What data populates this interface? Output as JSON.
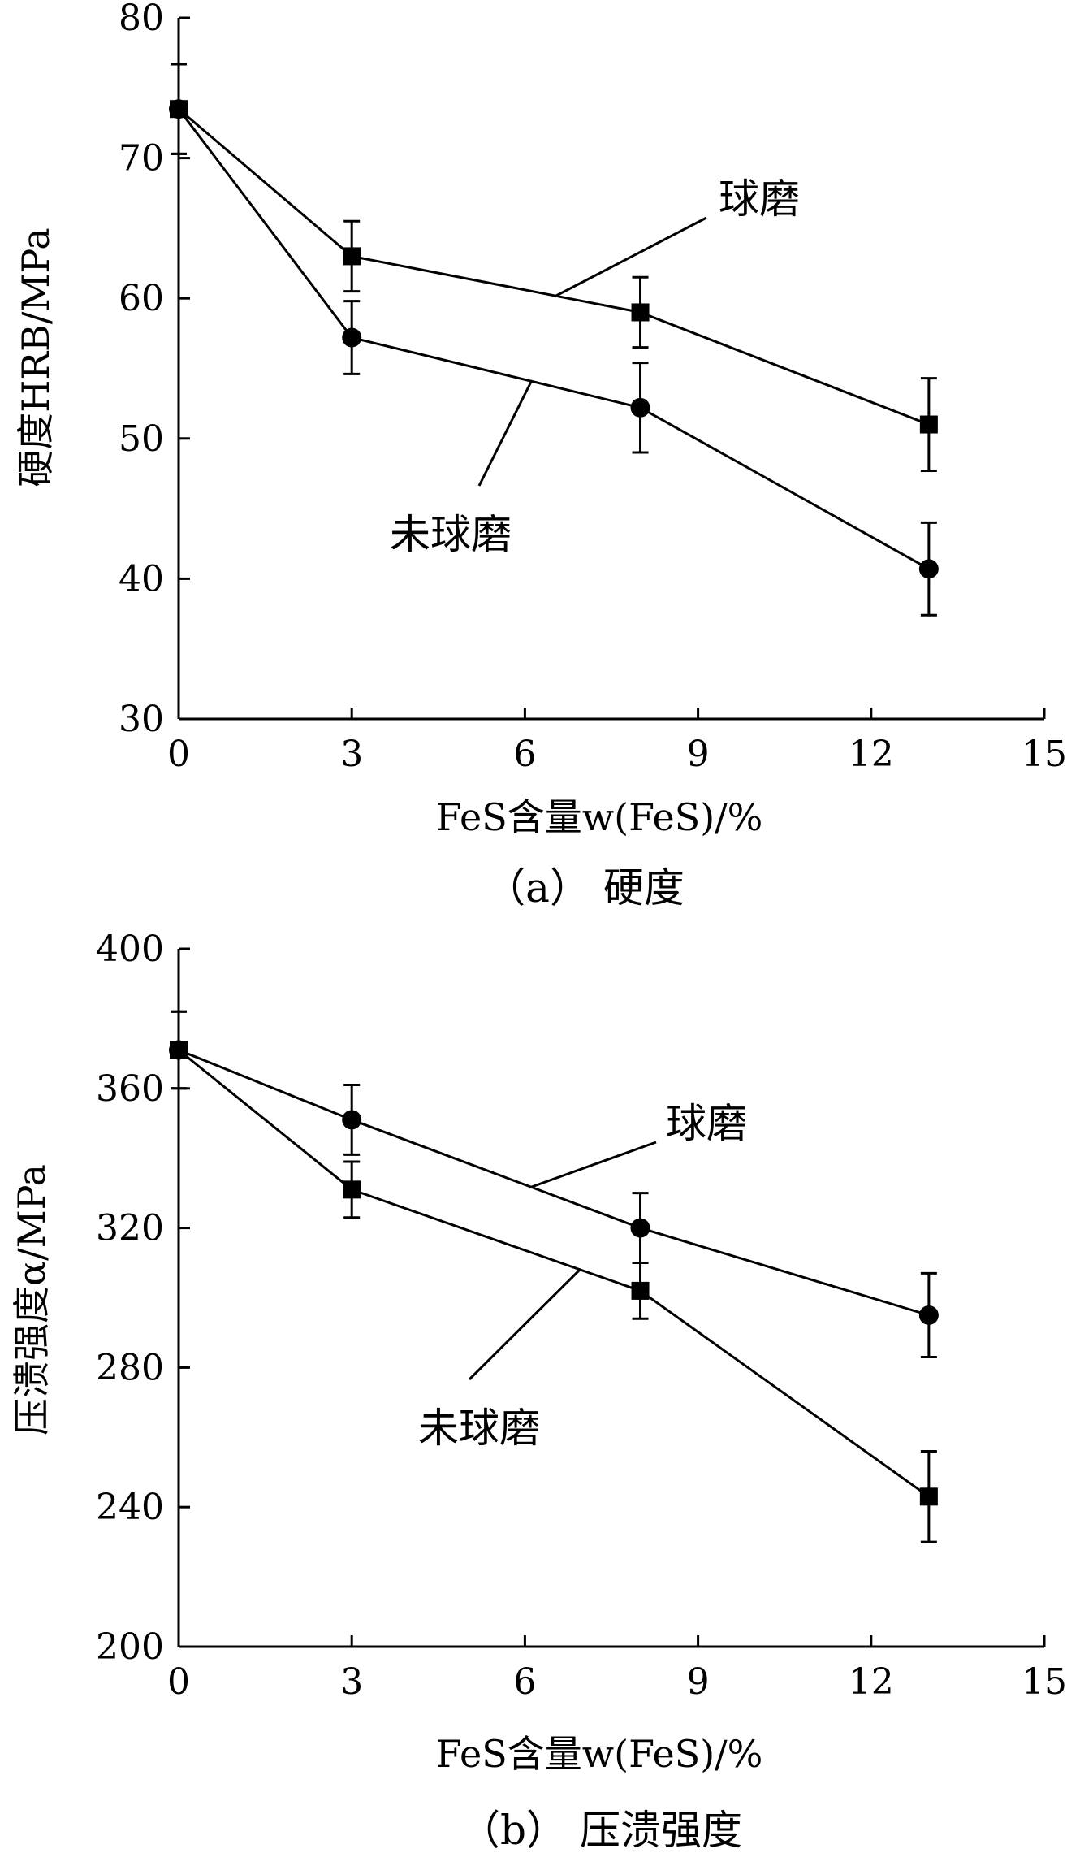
{
  "chart_data": [
    {
      "type": "line",
      "caption": "（a） 硬度",
      "xlabel": "FeS含量w(FeS)/%",
      "ylabel": "硬度HRB/MPa",
      "xlim": [
        0,
        15
      ],
      "ylim": [
        30,
        80
      ],
      "xticks": [
        0,
        3,
        6,
        9,
        12,
        15
      ],
      "yticks": [
        30,
        40,
        50,
        60,
        70,
        80
      ],
      "grid": false,
      "series": [
        {
          "name": "球磨",
          "marker": "square",
          "x": [
            0,
            3,
            8,
            13
          ],
          "y": [
            73.5,
            63.0,
            59.0,
            51.0
          ],
          "error": [
            3.2,
            2.5,
            2.5,
            3.3
          ]
        },
        {
          "name": "未球磨",
          "marker": "circle",
          "x": [
            0,
            3,
            8,
            13
          ],
          "y": [
            73.5,
            57.2,
            52.2,
            40.7
          ],
          "error": [
            3.2,
            2.6,
            3.2,
            3.3
          ]
        }
      ]
    },
    {
      "type": "line",
      "caption": "（b） 压溃强度",
      "xlabel": "FeS含量w(FeS)/%",
      "ylabel": "压溃强度α/MPa",
      "xlim": [
        0,
        15
      ],
      "ylim": [
        200,
        400
      ],
      "xticks": [
        0,
        3,
        6,
        9,
        12,
        15
      ],
      "yticks": [
        200,
        240,
        280,
        320,
        360,
        400
      ],
      "grid": false,
      "series": [
        {
          "name": "球磨",
          "marker": "circle",
          "x": [
            0,
            3,
            8,
            13
          ],
          "y": [
            371,
            351,
            320,
            295
          ],
          "error": [
            11,
            10,
            10,
            12
          ]
        },
        {
          "name": "未球磨",
          "marker": "square",
          "x": [
            0,
            3,
            8,
            13
          ],
          "y": [
            371,
            331,
            302,
            243
          ],
          "error": [
            11,
            8,
            8,
            13
          ]
        }
      ]
    }
  ]
}
